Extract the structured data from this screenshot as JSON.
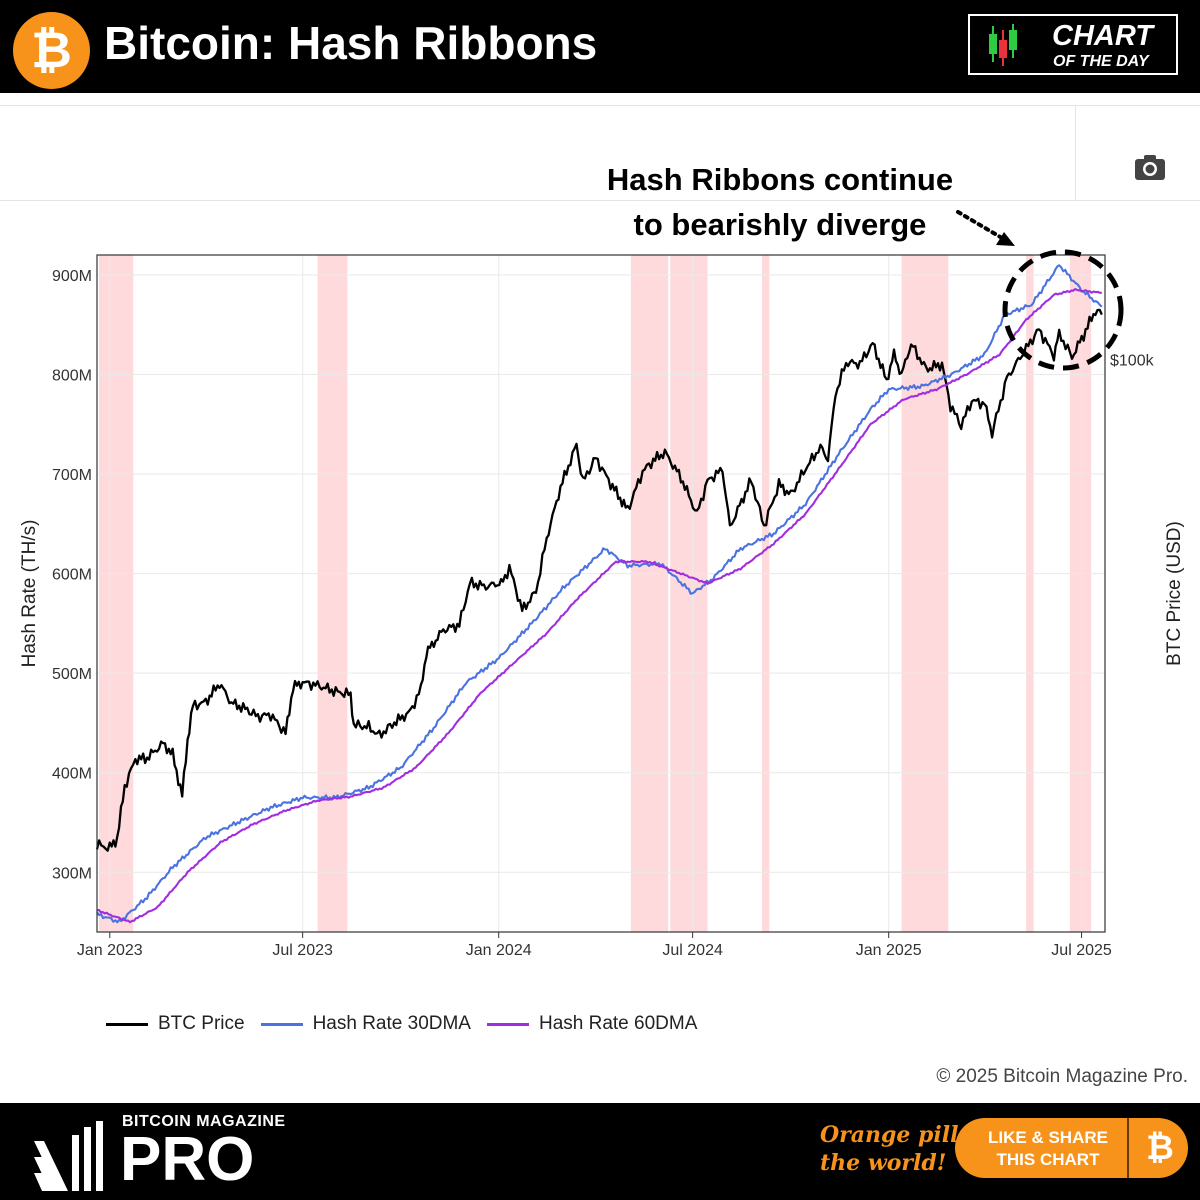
{
  "header": {
    "title": "Bitcoin: Hash Ribbons",
    "logo_glyph": "₿",
    "badge_line1": "CHART",
    "badge_line2": "OF THE DAY"
  },
  "toolbar": {
    "camera_icon": "camera-icon"
  },
  "annotation": {
    "line1": "Hash Ribbons continue",
    "line2": "to bearishly diverge"
  },
  "copyright": "© 2025 Bitcoin Magazine Pro.",
  "footer": {
    "brand_small": "BITCOIN MAGAZINE",
    "brand_big": "PRO",
    "slogan_line1": "Orange pill",
    "slogan_line2": "the world!",
    "share_line1": "LIKE & SHARE",
    "share_line2": "THIS CHART",
    "share_glyph": "₿"
  },
  "colors": {
    "btc_price": "#000000",
    "hash_30dma": "#4a72e0",
    "hash_60dma": "#a12de0",
    "capitulation_band": "#ffd3d6",
    "orange": "#f7931a"
  },
  "chart_data": {
    "type": "line",
    "title": "",
    "xlabel": "",
    "ylabel": "Hash Rate (TH/s)",
    "y2label": "BTC Price (USD)",
    "y2_tick_label": "$100k",
    "y2_tick_value": 100000,
    "x_start": "2022-12-20",
    "x_end": "2025-07-23",
    "ylim": [
      240,
      920
    ],
    "y_ticks": [
      300,
      400,
      500,
      600,
      700,
      800,
      900
    ],
    "y_tick_labels": [
      "300M",
      "400M",
      "500M",
      "600M",
      "700M",
      "800M",
      "900M"
    ],
    "x_ticks": [
      "2023-01-01",
      "2023-07-01",
      "2024-01-01",
      "2024-07-01",
      "2025-01-01",
      "2025-07-01"
    ],
    "x_tick_labels": [
      "Jan 2023",
      "Jul 2023",
      "Jan 2024",
      "Jul 2024",
      "Jan 2025",
      "Jul 2025"
    ],
    "grid": true,
    "legend_position": "bottom-left",
    "shaded_periods": [
      [
        "2022-12-22",
        "2023-01-23"
      ],
      [
        "2023-07-15",
        "2023-08-12"
      ],
      [
        "2024-05-04",
        "2024-06-08"
      ],
      [
        "2024-06-10",
        "2024-07-15"
      ],
      [
        "2024-09-04",
        "2024-09-11"
      ],
      [
        "2025-01-13",
        "2025-02-26"
      ],
      [
        "2025-05-10",
        "2025-05-17"
      ],
      [
        "2025-06-20",
        "2025-07-10"
      ]
    ],
    "series": [
      {
        "name": "BTC Price",
        "axis": "right",
        "points": [
          [
            "2022-12-20",
            16800
          ],
          [
            "2023-01-01",
            16600
          ],
          [
            "2023-01-08",
            17200
          ],
          [
            "2023-01-15",
            20800
          ],
          [
            "2023-01-25",
            23000
          ],
          [
            "2023-02-05",
            23100
          ],
          [
            "2023-02-20",
            24400
          ],
          [
            "2023-03-01",
            23400
          ],
          [
            "2023-03-10",
            20100
          ],
          [
            "2023-03-15",
            24700
          ],
          [
            "2023-03-20",
            28000
          ],
          [
            "2023-04-01",
            28400
          ],
          [
            "2023-04-14",
            30400
          ],
          [
            "2023-04-25",
            28300
          ],
          [
            "2023-05-10",
            27600
          ],
          [
            "2023-05-20",
            26900
          ],
          [
            "2023-06-01",
            27100
          ],
          [
            "2023-06-15",
            25300
          ],
          [
            "2023-06-22",
            30000
          ],
          [
            "2023-07-01",
            30500
          ],
          [
            "2023-07-15",
            30200
          ],
          [
            "2023-08-01",
            29500
          ],
          [
            "2023-08-15",
            29200
          ],
          [
            "2023-08-18",
            26100
          ],
          [
            "2023-09-01",
            25900
          ],
          [
            "2023-09-11",
            25100
          ],
          [
            "2023-09-25",
            26300
          ],
          [
            "2023-10-10",
            27400
          ],
          [
            "2023-10-20",
            29800
          ],
          [
            "2023-10-25",
            34000
          ],
          [
            "2023-11-10",
            37000
          ],
          [
            "2023-11-25",
            37700
          ],
          [
            "2023-12-05",
            44000
          ],
          [
            "2023-12-20",
            43400
          ],
          [
            "2024-01-05",
            44100
          ],
          [
            "2024-01-11",
            46600
          ],
          [
            "2024-01-23",
            39800
          ],
          [
            "2024-02-05",
            42600
          ],
          [
            "2024-02-15",
            51800
          ],
          [
            "2024-02-28",
            62500
          ],
          [
            "2024-03-14",
            73100
          ],
          [
            "2024-03-20",
            63800
          ],
          [
            "2024-04-01",
            69700
          ],
          [
            "2024-04-15",
            63400
          ],
          [
            "2024-05-01",
            57500
          ],
          [
            "2024-05-15",
            66200
          ],
          [
            "2024-05-25",
            69000
          ],
          [
            "2024-06-05",
            71100
          ],
          [
            "2024-06-20",
            64800
          ],
          [
            "2024-07-05",
            56700
          ],
          [
            "2024-07-15",
            64000
          ],
          [
            "2024-07-29",
            66800
          ],
          [
            "2024-08-05",
            54000
          ],
          [
            "2024-08-25",
            64200
          ],
          [
            "2024-09-06",
            54200
          ],
          [
            "2024-09-20",
            63200
          ],
          [
            "2024-10-01",
            60800
          ],
          [
            "2024-10-15",
            67000
          ],
          [
            "2024-10-29",
            72500
          ],
          [
            "2024-11-05",
            69400
          ],
          [
            "2024-11-12",
            88000
          ],
          [
            "2024-11-22",
            98900
          ],
          [
            "2024-12-05",
            98500
          ],
          [
            "2024-12-17",
            106100
          ],
          [
            "2024-12-30",
            92600
          ],
          [
            "2025-01-06",
            102000
          ],
          [
            "2025-01-13",
            94500
          ],
          [
            "2025-01-22",
            106000
          ],
          [
            "2025-02-05",
            96600
          ],
          [
            "2025-02-20",
            98300
          ],
          [
            "2025-02-28",
            84400
          ],
          [
            "2025-03-10",
            78500
          ],
          [
            "2025-03-20",
            86000
          ],
          [
            "2025-04-01",
            85000
          ],
          [
            "2025-04-08",
            76300
          ],
          [
            "2025-04-22",
            93400
          ],
          [
            "2025-05-08",
            103000
          ],
          [
            "2025-05-22",
            111700
          ],
          [
            "2025-06-05",
            101500
          ],
          [
            "2025-06-10",
            110000
          ],
          [
            "2025-06-22",
            101000
          ],
          [
            "2025-07-03",
            109500
          ],
          [
            "2025-07-14",
            119800
          ],
          [
            "2025-07-20",
            118000
          ]
        ]
      },
      {
        "name": "Hash Rate 30DMA",
        "axis": "left",
        "points": [
          [
            "2022-12-20",
            258
          ],
          [
            "2023-01-10",
            250
          ],
          [
            "2023-02-05",
            275
          ],
          [
            "2023-03-01",
            305
          ],
          [
            "2023-04-01",
            335
          ],
          [
            "2023-05-01",
            350
          ],
          [
            "2023-06-01",
            365
          ],
          [
            "2023-07-01",
            375
          ],
          [
            "2023-08-01",
            375
          ],
          [
            "2023-09-01",
            385
          ],
          [
            "2023-10-01",
            405
          ],
          [
            "2023-11-01",
            445
          ],
          [
            "2023-12-01",
            490
          ],
          [
            "2024-01-01",
            515
          ],
          [
            "2024-02-01",
            550
          ],
          [
            "2024-03-01",
            585
          ],
          [
            "2024-04-10",
            625
          ],
          [
            "2024-05-01",
            608
          ],
          [
            "2024-06-01",
            610
          ],
          [
            "2024-07-01",
            580
          ],
          [
            "2024-07-20",
            595
          ],
          [
            "2024-08-15",
            625
          ],
          [
            "2024-09-15",
            640
          ],
          [
            "2024-10-15",
            670
          ],
          [
            "2024-11-15",
            720
          ],
          [
            "2024-12-15",
            765
          ],
          [
            "2025-01-01",
            785
          ],
          [
            "2025-02-01",
            788
          ],
          [
            "2025-03-01",
            800
          ],
          [
            "2025-04-01",
            820
          ],
          [
            "2025-04-20",
            860
          ],
          [
            "2025-05-15",
            870
          ],
          [
            "2025-06-10",
            910
          ],
          [
            "2025-07-01",
            885
          ],
          [
            "2025-07-20",
            868
          ]
        ]
      },
      {
        "name": "Hash Rate 60DMA",
        "axis": "left",
        "points": [
          [
            "2022-12-20",
            262
          ],
          [
            "2023-01-20",
            250
          ],
          [
            "2023-02-15",
            265
          ],
          [
            "2023-03-15",
            300
          ],
          [
            "2023-04-15",
            330
          ],
          [
            "2023-05-15",
            348
          ],
          [
            "2023-06-15",
            362
          ],
          [
            "2023-07-15",
            372
          ],
          [
            "2023-08-15",
            376
          ],
          [
            "2023-09-15",
            385
          ],
          [
            "2023-10-15",
            405
          ],
          [
            "2023-11-15",
            440
          ],
          [
            "2023-12-15",
            480
          ],
          [
            "2024-01-15",
            510
          ],
          [
            "2024-02-15",
            540
          ],
          [
            "2024-03-15",
            575
          ],
          [
            "2024-04-20",
            612
          ],
          [
            "2024-05-20",
            612
          ],
          [
            "2024-06-20",
            600
          ],
          [
            "2024-07-15",
            590
          ],
          [
            "2024-08-15",
            605
          ],
          [
            "2024-09-15",
            630
          ],
          [
            "2024-10-15",
            660
          ],
          [
            "2024-11-15",
            705
          ],
          [
            "2024-12-15",
            750
          ],
          [
            "2025-01-15",
            775
          ],
          [
            "2025-02-15",
            785
          ],
          [
            "2025-03-15",
            800
          ],
          [
            "2025-04-15",
            820
          ],
          [
            "2025-05-10",
            855
          ],
          [
            "2025-06-05",
            880
          ],
          [
            "2025-06-25",
            885
          ],
          [
            "2025-07-20",
            882
          ]
        ]
      }
    ]
  }
}
